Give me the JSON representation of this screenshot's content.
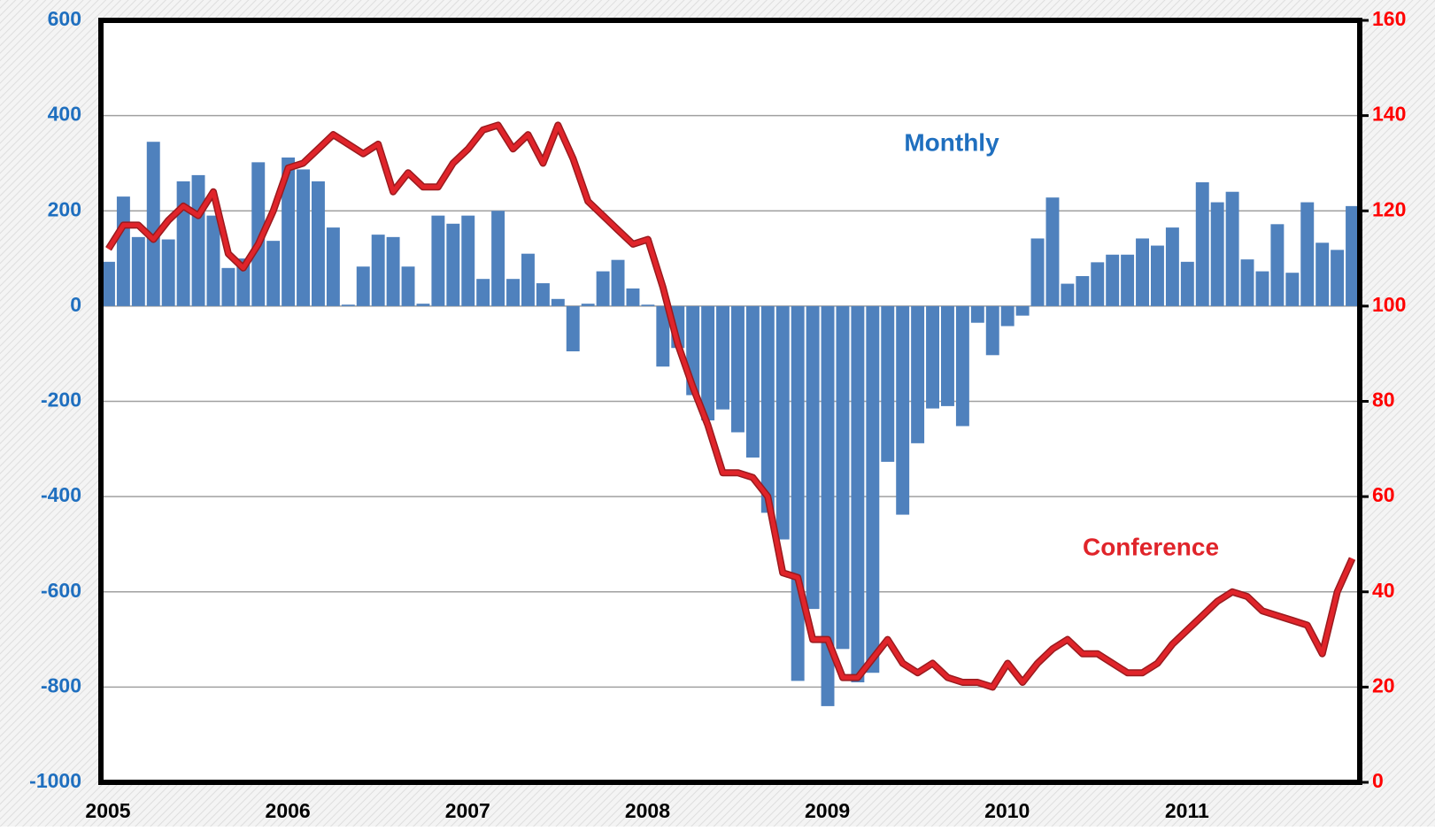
{
  "chart_data": {
    "type": "bar-line",
    "categories": [
      "2005",
      null,
      null,
      null,
      null,
      null,
      null,
      null,
      null,
      null,
      null,
      null,
      "2006",
      null,
      null,
      null,
      null,
      null,
      null,
      null,
      null,
      null,
      null,
      null,
      "2007",
      null,
      null,
      null,
      null,
      null,
      null,
      null,
      null,
      null,
      null,
      null,
      "2008",
      null,
      null,
      null,
      null,
      null,
      null,
      null,
      null,
      null,
      null,
      null,
      "2009",
      null,
      null,
      null,
      null,
      null,
      null,
      null,
      null,
      null,
      null,
      null,
      "2010",
      null,
      null,
      null,
      null,
      null,
      null,
      null,
      null,
      null,
      null,
      null,
      "2011",
      null,
      null,
      null,
      null,
      null,
      null,
      null,
      null,
      null,
      null,
      null
    ],
    "series": [
      {
        "name": "Monthly",
        "color": "#4f81bd",
        "type": "bar",
        "axis": "y",
        "values": [
          93,
          230,
          145,
          345,
          140,
          262,
          275,
          190,
          80,
          100,
          302,
          137,
          312,
          287,
          262,
          165,
          3,
          83,
          150,
          145,
          83,
          5,
          190,
          173,
          190,
          57,
          200,
          57,
          110,
          48,
          15,
          -95,
          5,
          73,
          97,
          37,
          3,
          -127,
          -88,
          -187,
          -240,
          -217,
          -265,
          -318,
          -434,
          -490,
          -787,
          -636,
          -840,
          -720,
          -790,
          -770,
          -327,
          -438,
          -288,
          -215,
          -210,
          -252,
          -35,
          -103,
          -42,
          -20,
          142,
          228,
          47,
          63,
          92,
          108,
          108,
          142,
          127,
          165,
          93,
          260,
          218,
          240,
          98,
          73,
          172,
          70,
          218,
          133,
          118,
          210
        ]
      },
      {
        "name": "Conference",
        "color": "#e0242a",
        "type": "line",
        "axis": "y2",
        "values": [
          112,
          117,
          117,
          114,
          118,
          121,
          119,
          124,
          111,
          108,
          113,
          120,
          129,
          130,
          133,
          136,
          134,
          132,
          134,
          124,
          128,
          125,
          125,
          130,
          133,
          137,
          138,
          133,
          136,
          130,
          138,
          131,
          122,
          119,
          116,
          113,
          114,
          104,
          92,
          83,
          75,
          65,
          65,
          64,
          60,
          44,
          43,
          30,
          30,
          22,
          22,
          26,
          30,
          25,
          23,
          25,
          22,
          21,
          21,
          20,
          25,
          21,
          25,
          28,
          30,
          27,
          27,
          25,
          23,
          23,
          25,
          29,
          32,
          35,
          38,
          40,
          39,
          36,
          35,
          34,
          33,
          27,
          40,
          47
        ]
      }
    ],
    "ylim": [
      -1000,
      600
    ],
    "yticks": [
      -1000,
      -800,
      -600,
      -400,
      -200,
      0,
      200,
      400,
      600
    ],
    "y2lim": [
      0,
      160
    ],
    "y2ticks": [
      0,
      20,
      40,
      60,
      80,
      100,
      120,
      140,
      160
    ],
    "grid": true
  }
}
